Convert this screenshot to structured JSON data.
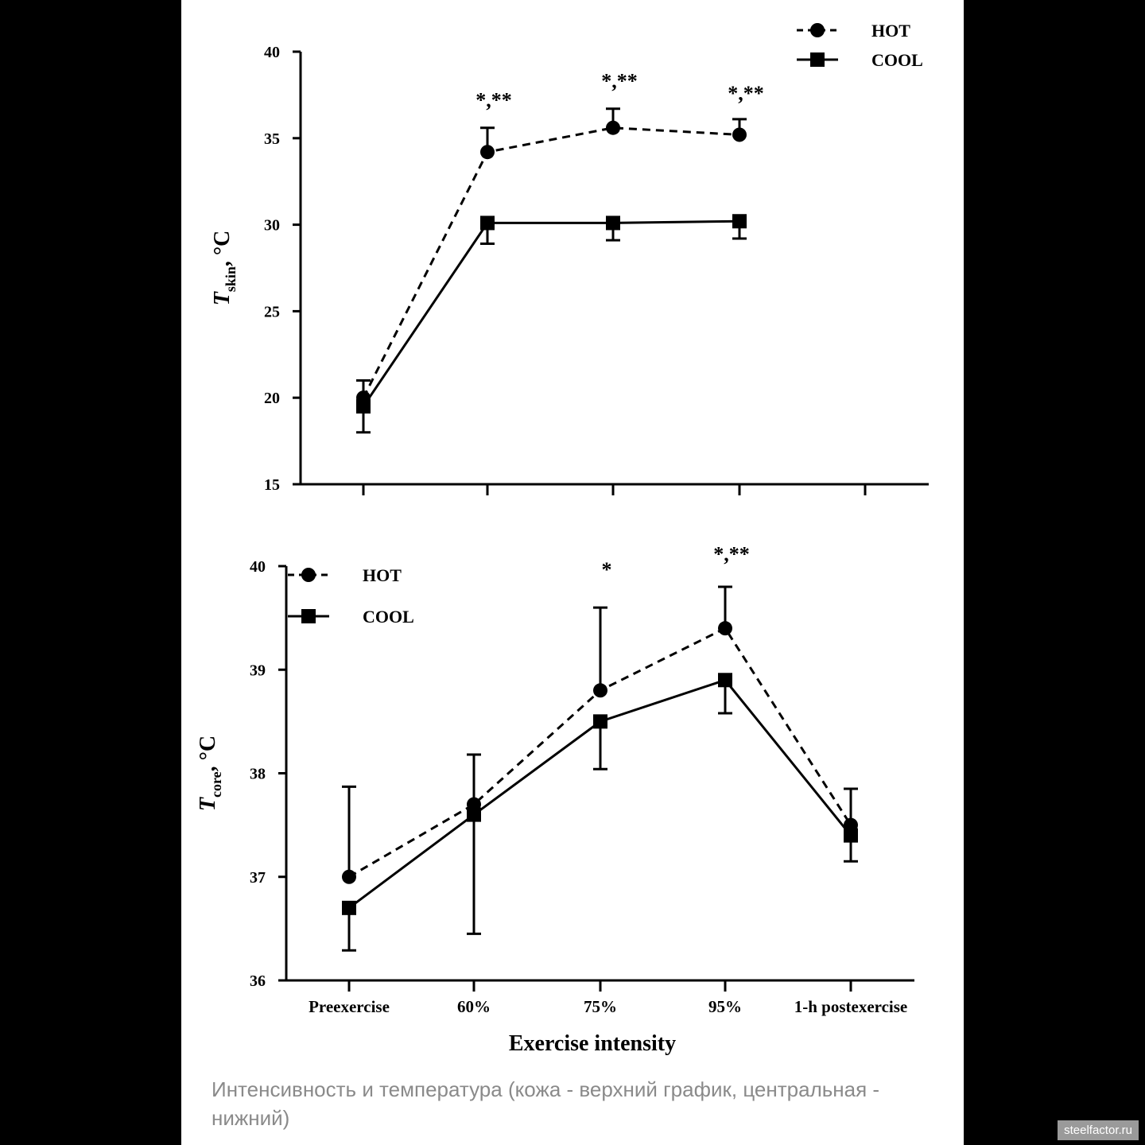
{
  "caption": "Интенсивность и температура (кожа - верхний график, центральная - нижний)",
  "watermark": "steelfactor.ru",
  "chart_data": [
    {
      "type": "line",
      "ylabel_main": "T",
      "ylabel_sub": "skin",
      "ylabel_unit": ", °C",
      "ylim": [
        15,
        40
      ],
      "yticks": [
        15,
        20,
        25,
        30,
        35,
        40
      ],
      "x_count": 5,
      "categories": [
        "Preexercise",
        "60%",
        "75%",
        "95%",
        "1-h postexercise"
      ],
      "show_xtick_labels": false,
      "legend": "top-right",
      "series": [
        {
          "name": "HOT",
          "marker": "circle",
          "dashed": true,
          "values": [
            20.0,
            34.2,
            35.6,
            35.2,
            null
          ],
          "err_up": [
            21.0,
            35.6,
            36.7,
            36.1,
            null
          ],
          "err_down": [
            null,
            null,
            null,
            null,
            null
          ]
        },
        {
          "name": "COOL",
          "marker": "square",
          "dashed": false,
          "values": [
            19.5,
            30.1,
            30.1,
            30.2,
            null
          ],
          "err_up": [
            null,
            null,
            null,
            null,
            null
          ],
          "err_down": [
            18.0,
            28.9,
            29.1,
            29.2,
            null
          ]
        }
      ],
      "annotations": [
        {
          "x_index": 1,
          "y": 36.8,
          "text": "*,**"
        },
        {
          "x_index": 2,
          "y": 37.9,
          "text": "*,**"
        },
        {
          "x_index": 3,
          "y": 37.2,
          "text": "*,**"
        }
      ]
    },
    {
      "type": "line",
      "ylabel_main": "T",
      "ylabel_sub": "core",
      "ylabel_unit": ", °C",
      "xlabel": "Exercise intensity",
      "ylim": [
        36,
        40
      ],
      "yticks": [
        36,
        37,
        38,
        39,
        40
      ],
      "x_count": 5,
      "categories": [
        "Preexercise",
        "60%",
        "75%",
        "95%",
        "1-h postexercise"
      ],
      "show_xtick_labels": true,
      "legend": "top-left",
      "series": [
        {
          "name": "HOT",
          "marker": "circle",
          "dashed": true,
          "values": [
            37.0,
            37.7,
            38.8,
            39.4,
            37.5
          ],
          "err_up": [
            37.87,
            38.18,
            39.6,
            39.8,
            37.85
          ],
          "err_down": [
            null,
            null,
            null,
            null,
            null
          ]
        },
        {
          "name": "COOL",
          "marker": "square",
          "dashed": false,
          "values": [
            36.7,
            37.6,
            38.5,
            38.9,
            37.4
          ],
          "err_up": [
            null,
            null,
            null,
            null,
            null
          ],
          "err_down": [
            36.29,
            36.45,
            38.04,
            38.58,
            37.15
          ]
        }
      ],
      "annotations": [
        {
          "x_index": 2,
          "y": 39.9,
          "text": "*"
        },
        {
          "x_index": 3,
          "y": 40.05,
          "text": "*,**"
        }
      ]
    }
  ]
}
